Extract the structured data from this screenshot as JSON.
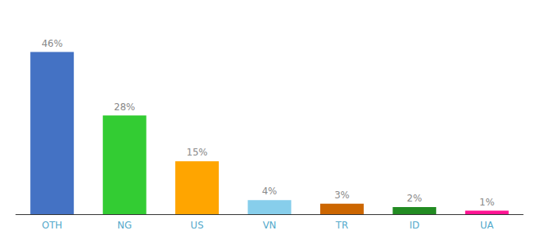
{
  "chart_data": {
    "type": "bar",
    "categories": [
      "OTH",
      "NG",
      "US",
      "VN",
      "TR",
      "ID",
      "UA"
    ],
    "values": [
      46,
      28,
      15,
      4,
      3,
      2,
      1
    ],
    "value_labels": [
      "46%",
      "28%",
      "15%",
      "4%",
      "3%",
      "2%",
      "1%"
    ],
    "colors": [
      "#4472C4",
      "#33CC33",
      "#FFA500",
      "#87CEEB",
      "#CC6600",
      "#228B22",
      "#FF1493"
    ],
    "ylim": [
      0,
      54
    ],
    "grid": false,
    "data_labels": true,
    "tick_labels": "x"
  }
}
